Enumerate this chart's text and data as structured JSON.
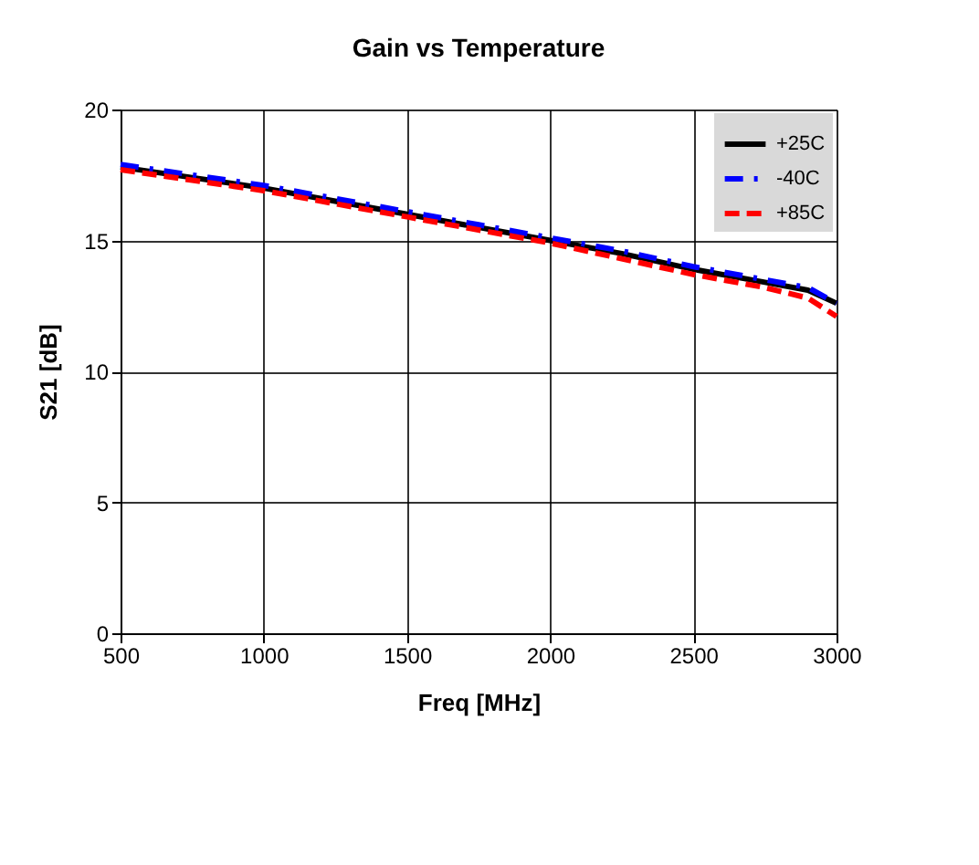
{
  "chart_data": {
    "type": "line",
    "title": "Gain vs Temperature",
    "xlabel": "Freq [MHz]",
    "ylabel": "S21 [dB]",
    "x": [
      500,
      750,
      1000,
      1250,
      1500,
      1750,
      2000,
      2250,
      2500,
      2750,
      2900,
      3000
    ],
    "series": [
      {
        "name": "+25C",
        "color": "#000000",
        "line_style": "solid",
        "values": [
          17.8,
          17.4,
          17.0,
          16.5,
          16.0,
          15.5,
          15.0,
          14.5,
          13.9,
          13.4,
          13.1,
          12.6
        ]
      },
      {
        "name": "-40C",
        "color": "#0000ff",
        "line_style": "dashdot",
        "values": [
          17.9,
          17.5,
          17.1,
          16.6,
          16.1,
          15.6,
          15.1,
          14.6,
          14.0,
          13.5,
          13.2,
          12.6
        ]
      },
      {
        "name": "+85C",
        "color": "#ff0000",
        "line_style": "dashed",
        "values": [
          17.7,
          17.3,
          16.9,
          16.4,
          15.9,
          15.4,
          14.9,
          14.3,
          13.7,
          13.2,
          12.8,
          12.1
        ]
      }
    ],
    "xlim": [
      500,
      3000
    ],
    "xticks": [
      500,
      1000,
      1500,
      2000,
      2500,
      3000
    ],
    "ylim": [
      0,
      20
    ],
    "yticks": [
      0,
      5,
      10,
      15,
      20
    ],
    "grid": true,
    "legend": "top right",
    "marker": "none"
  }
}
